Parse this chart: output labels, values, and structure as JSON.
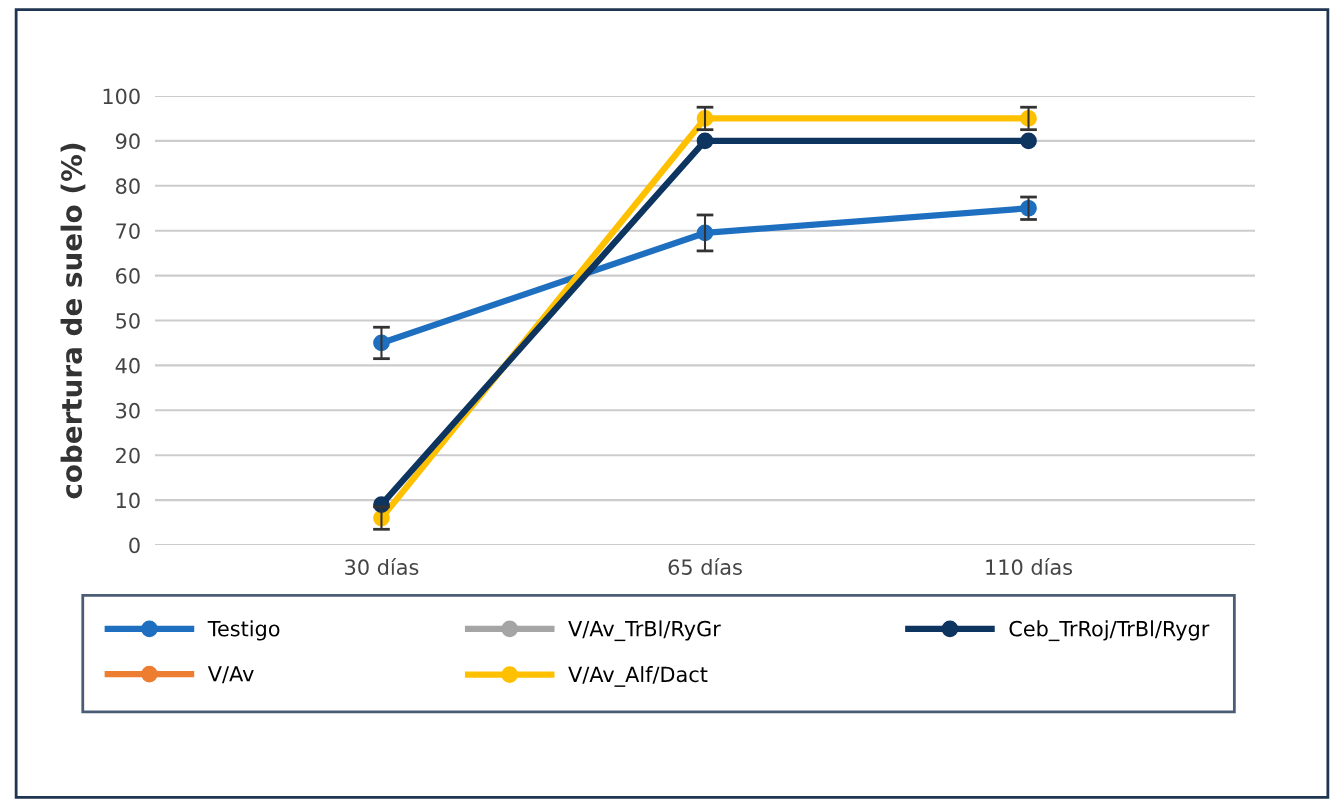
{
  "chart_data": {
    "type": "line",
    "ylabel": "cobertura de suelo (%)",
    "categories": [
      "30 días",
      "65 días",
      "110 días"
    ],
    "series": [
      {
        "name": "Testigo",
        "color": "#1f6fc0",
        "values": [
          45,
          69.5,
          75
        ],
        "errors": [
          3.5,
          4,
          2.5
        ]
      },
      {
        "name": "V/Av",
        "color": "#ed7d31",
        "values": [
          null,
          null,
          null
        ]
      },
      {
        "name": "V/Av_TrBl/RyGr",
        "color": "#a5a5a5",
        "values": [
          null,
          null,
          null
        ]
      },
      {
        "name": "V/Av_Alf/Dact",
        "color": "#ffc000",
        "values": [
          6,
          95,
          95
        ],
        "errors": [
          2.5,
          2.5,
          2.5
        ]
      },
      {
        "name": "Ceb_TrRoj/TrBl/Rygr",
        "color": "#0e3460",
        "values": [
          9,
          90,
          90
        ]
      }
    ],
    "ylim": [
      0,
      100
    ],
    "yticks": [
      0,
      10,
      20,
      30,
      40,
      50,
      60,
      70,
      80,
      90,
      100
    ],
    "grid": "y",
    "legend": "bottom",
    "marker": "circle",
    "line_style": "solid"
  }
}
